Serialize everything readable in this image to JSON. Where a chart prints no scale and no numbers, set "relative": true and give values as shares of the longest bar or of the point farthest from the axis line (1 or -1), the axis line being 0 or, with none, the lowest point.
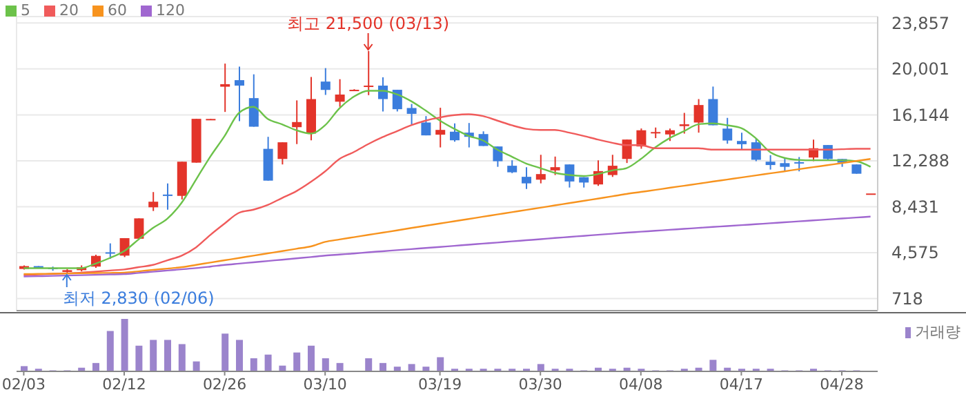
{
  "chart_data": [
    {
      "type": "candlestick",
      "categories": [
        null,
        null,
        null,
        null,
        null,
        null,
        null,
        null,
        null,
        null,
        null,
        null,
        null,
        null,
        null,
        null,
        null,
        null,
        null,
        null,
        null,
        null,
        null,
        null,
        null,
        null,
        null,
        null,
        null,
        null,
        null,
        null,
        null,
        null,
        null,
        null,
        null,
        null,
        null,
        null,
        null,
        null,
        null,
        null,
        null,
        null,
        null,
        null,
        null,
        null,
        null,
        null,
        null,
        null,
        null,
        null,
        null,
        null,
        null,
        null
      ],
      "ohlc": [
        [
          3200,
          3500,
          3150,
          3440
        ],
        [
          3440,
          3440,
          3250,
          3250
        ],
        [
          3300,
          3400,
          3050,
          3200
        ],
        [
          2950,
          3200,
          2830,
          3100
        ],
        [
          3100,
          3500,
          3000,
          3350
        ],
        [
          3400,
          4400,
          3300,
          4300
        ],
        [
          4600,
          5350,
          4050,
          4500
        ],
        [
          4320,
          5790,
          4200,
          5790
        ],
        [
          5740,
          7450,
          5740,
          7450
        ],
        [
          8380,
          9660,
          8070,
          8850
        ],
        [
          9450,
          10390,
          8180,
          9350
        ],
        [
          9340,
          12210,
          9040,
          12210
        ],
        [
          12130,
          15810,
          12130,
          15810
        ],
        [
          15750,
          15800,
          15750,
          15800
        ],
        [
          18510,
          20450,
          16390,
          18720
        ],
        [
          19060,
          20190,
          15610,
          18600
        ],
        [
          17550,
          19550,
          15150,
          15150
        ],
        [
          13290,
          14300,
          10620,
          10620
        ],
        [
          12440,
          13840,
          11980,
          13840
        ],
        [
          15110,
          17360,
          13690,
          15540
        ],
        [
          14570,
          19330,
          14000,
          17470
        ],
        [
          18940,
          20070,
          17820,
          18240
        ],
        [
          17250,
          19140,
          16820,
          17850
        ],
        [
          18200,
          18300,
          18200,
          18250
        ],
        [
          18500,
          21500,
          17800,
          18600
        ],
        [
          18600,
          19300,
          16430,
          17470
        ],
        [
          18250,
          18250,
          16430,
          16620
        ],
        [
          16720,
          17060,
          15350,
          16230
        ],
        [
          15500,
          16040,
          14420,
          14420
        ],
        [
          14480,
          16740,
          13410,
          14880
        ],
        [
          14730,
          15430,
          13890,
          14010
        ],
        [
          14650,
          15460,
          13410,
          14300
        ],
        [
          14530,
          14760,
          13530,
          13530
        ],
        [
          13490,
          13490,
          11780,
          12250
        ],
        [
          11870,
          12330,
          11250,
          11320
        ],
        [
          10940,
          11750,
          9920,
          10390
        ],
        [
          10700,
          12790,
          10390,
          11170
        ],
        [
          11480,
          12640,
          11090,
          11750
        ],
        [
          11980,
          11980,
          10040,
          10550
        ],
        [
          10910,
          10910,
          10040,
          10460
        ],
        [
          10300,
          12330,
          10180,
          11420
        ],
        [
          11090,
          12790,
          10930,
          11870
        ],
        [
          12440,
          14070,
          12100,
          14070
        ],
        [
          13490,
          15000,
          13300,
          14850
        ],
        [
          14650,
          15080,
          14190,
          14700
        ],
        [
          14500,
          14990,
          13950,
          14850
        ],
        [
          15200,
          16310,
          14570,
          15350
        ],
        [
          15500,
          17470,
          14650,
          16970
        ],
        [
          17470,
          18520,
          15270,
          15270
        ],
        [
          14990,
          15890,
          13720,
          13990
        ],
        [
          13950,
          14650,
          13220,
          13680
        ],
        [
          13840,
          14190,
          12250,
          12370
        ],
        [
          12210,
          12760,
          11550,
          11930
        ],
        [
          12090,
          12520,
          11400,
          11780
        ],
        [
          12170,
          12600,
          11400,
          12130
        ],
        [
          12560,
          14070,
          12250,
          13340
        ],
        [
          13610,
          13610,
          12330,
          12440
        ],
        [
          12440,
          12440,
          11780,
          12130
        ],
        [
          11980,
          11980,
          11200,
          11200
        ],
        [
          9540,
          9540,
          9540,
          9540
        ]
      ],
      "colors": [
        "#e3342a",
        "#3b7ddd",
        "#3b7ddd",
        "#e3342a",
        "#e3342a",
        "#e3342a",
        "#3b7ddd",
        "#e3342a",
        "#e3342a",
        "#e3342a",
        "#3b7ddd",
        "#e3342a",
        "#e3342a",
        "#e3342a",
        "#e3342a",
        "#3b7ddd",
        "#3b7ddd",
        "#3b7ddd",
        "#e3342a",
        "#e3342a",
        "#e3342a",
        "#3b7ddd",
        "#e3342a",
        "#e3342a",
        "#e3342a",
        "#3b7ddd",
        "#3b7ddd",
        "#3b7ddd",
        "#3b7ddd",
        "#e3342a",
        "#3b7ddd",
        "#3b7ddd",
        "#3b7ddd",
        "#3b7ddd",
        "#3b7ddd",
        "#3b7ddd",
        "#e3342a",
        "#e3342a",
        "#3b7ddd",
        "#3b7ddd",
        "#e3342a",
        "#e3342a",
        "#e3342a",
        "#e3342a",
        "#e3342a",
        "#e3342a",
        "#e3342a",
        "#e3342a",
        "#3b7ddd",
        "#3b7ddd",
        "#3b7ddd",
        "#3b7ddd",
        "#3b7ddd",
        "#3b7ddd",
        "#3b7ddd",
        "#e3342a",
        "#3b7ddd",
        "#3b7ddd",
        "#3b7ddd",
        "#e3342a"
      ],
      "series": [
        {
          "type": "line",
          "name": "5",
          "color": "#6cc24a",
          "values": [
            3270,
            3270,
            3270,
            3270,
            3270,
            3650,
            4120,
            4700,
            5680,
            6640,
            7420,
            8760,
            10700,
            12640,
            14380,
            16310,
            16820,
            15810,
            15350,
            14850,
            14570,
            15270,
            16700,
            17670,
            18170,
            18170,
            17870,
            17290,
            16510,
            15660,
            14970,
            14380,
            13990,
            13220,
            12640,
            12060,
            11670,
            11280,
            11090,
            11010,
            11170,
            11480,
            11670,
            12440,
            13410,
            14190,
            14770,
            15350,
            15430,
            15270,
            15030,
            14190,
            13020,
            12530,
            12360,
            12330,
            12330,
            12330,
            12250,
            11780
          ]
        },
        {
          "type": "line",
          "name": "20",
          "color": "#f05b5b",
          "values": [
            2690,
            2740,
            2790,
            2840,
            2890,
            2980,
            3070,
            3160,
            3350,
            3540,
            3930,
            4320,
            5010,
            6060,
            7020,
            7920,
            8180,
            8580,
            9160,
            9740,
            10510,
            11400,
            12440,
            13020,
            13690,
            14270,
            14770,
            15270,
            15660,
            15930,
            16120,
            16200,
            16040,
            15660,
            15270,
            14970,
            14880,
            14880,
            14650,
            14380,
            14070,
            13800,
            13600,
            13600,
            13340,
            13340,
            13340,
            13340,
            13220,
            13220,
            13220,
            13220,
            13220,
            13220,
            13220,
            13220,
            13220,
            13260,
            13300,
            13300
          ]
        },
        {
          "type": "line",
          "name": "60",
          "color": "#f7931e",
          "values": [
            2770,
            2790,
            2800,
            2820,
            2840,
            2860,
            2870,
            2890,
            3000,
            3120,
            3230,
            3350,
            3540,
            3740,
            3930,
            4120,
            4320,
            4510,
            4700,
            4900,
            5090,
            5480,
            5680,
            5870,
            6060,
            6250,
            6440,
            6640,
            6830,
            7020,
            7210,
            7400,
            7590,
            7780,
            7970,
            8160,
            8350,
            8540,
            8730,
            8920,
            9110,
            9300,
            9500,
            9670,
            9840,
            10020,
            10190,
            10360,
            10540,
            10710,
            10880,
            11060,
            11230,
            11400,
            11580,
            11750,
            11920,
            12090,
            12270,
            12440
          ]
        },
        {
          "type": "line",
          "name": "120",
          "color": "#a067d0",
          "values": [
            2570,
            2590,
            2620,
            2650,
            2680,
            2710,
            2740,
            2770,
            2870,
            2970,
            3070,
            3170,
            3270,
            3400,
            3540,
            3650,
            3760,
            3870,
            3980,
            4090,
            4200,
            4320,
            4410,
            4500,
            4600,
            4690,
            4780,
            4870,
            4960,
            5050,
            5140,
            5240,
            5330,
            5420,
            5520,
            5610,
            5700,
            5800,
            5890,
            5980,
            6070,
            6160,
            6250,
            6330,
            6410,
            6490,
            6570,
            6650,
            6730,
            6800,
            6880,
            6960,
            7040,
            7120,
            7200,
            7280,
            7360,
            7440,
            7520,
            7600
          ]
        }
      ],
      "ylim": [
        -300,
        24400
      ],
      "yticks": [
        {
          "value": 718,
          "label": "718"
        },
        {
          "value": 4575,
          "label": "4,575"
        },
        {
          "value": 8431,
          "label": "8,431"
        },
        {
          "value": 12288,
          "label": "12,288"
        },
        {
          "value": 16144,
          "label": "16,144"
        },
        {
          "value": 20001,
          "label": "20,001"
        },
        {
          "value": 23857,
          "label": "23,857"
        }
      ],
      "grid": true,
      "legend": "top left",
      "tick_labels": "y",
      "annotations": [
        {
          "text": "최고 21,500 (03/13)",
          "y": 21500
        },
        {
          "text": "최저 2,830 (02/06)",
          "y": 2830
        }
      ]
    },
    {
      "type": "bar",
      "relative": true,
      "categories": [
        "02/03",
        null,
        null,
        null,
        null,
        null,
        null,
        "02/12",
        null,
        null,
        null,
        null,
        null,
        null,
        "02/26",
        null,
        null,
        null,
        null,
        null,
        null,
        "03/10",
        null,
        null,
        null,
        null,
        null,
        null,
        null,
        "03/19",
        null,
        null,
        null,
        null,
        null,
        null,
        "03/30",
        null,
        null,
        null,
        null,
        null,
        null,
        "04/08",
        null,
        null,
        null,
        null,
        null,
        null,
        "04/17",
        null,
        null,
        null,
        null,
        null,
        null,
        "04/28",
        null,
        null
      ],
      "series": [
        {
          "name": "거래량",
          "color": "#9b84cc",
          "values": [
            0.1,
            0.05,
            0.02,
            0.02,
            0.07,
            0.16,
            0.77,
            1,
            0.49,
            0.6,
            0.6,
            0.52,
            0.19,
            0,
            0.72,
            0.6,
            0.25,
            0.32,
            0.11,
            0.36,
            0.49,
            0.25,
            0.16,
            0,
            0.25,
            0.16,
            0.09,
            0.14,
            0.09,
            0.27,
            0.05,
            0.05,
            0.05,
            0.05,
            0.05,
            0.05,
            0.14,
            0.05,
            0.05,
            0.02,
            0.07,
            0.05,
            0.07,
            0.05,
            0.02,
            0.02,
            0.05,
            0.07,
            0.22,
            0.07,
            0.05,
            0.05,
            0.05,
            0.02,
            0.02,
            0.05,
            0.02,
            0.02,
            0.02,
            0
          ]
        }
      ],
      "legend": "top right",
      "tick_labels": "x"
    }
  ]
}
